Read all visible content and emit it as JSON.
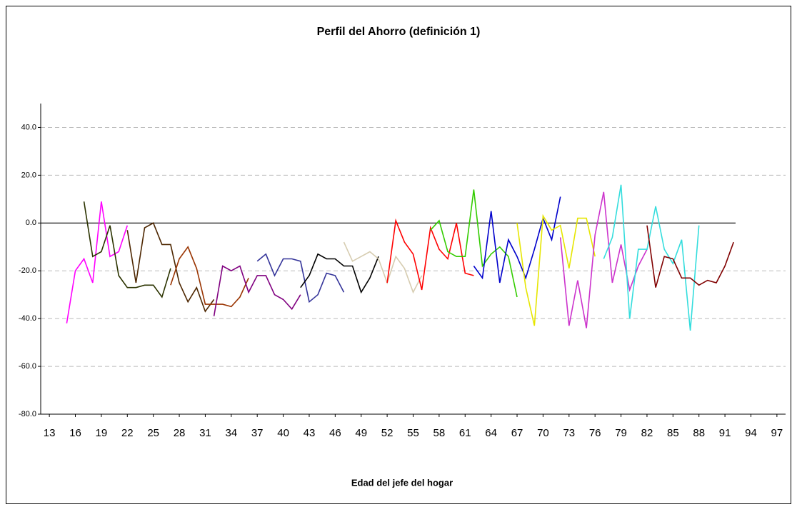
{
  "chart_data": {
    "type": "line",
    "title": "Perfil del Ahorro (definición 1)",
    "x_label": "Edad del jefe del hogar",
    "xlim": [
      12,
      98
    ],
    "xticks": [
      13,
      16,
      19,
      22,
      25,
      28,
      31,
      34,
      37,
      40,
      43,
      46,
      49,
      52,
      55,
      58,
      61,
      64,
      67,
      70,
      73,
      76,
      79,
      82,
      85,
      88,
      91,
      94,
      97
    ],
    "ylim": [
      -80,
      50
    ],
    "yticks": [
      {
        "value": -80,
        "label": "-80.0"
      },
      {
        "value": -60,
        "label": "-60.0"
      },
      {
        "value": -40,
        "label": "-40.0"
      },
      {
        "value": -20,
        "label": "-20.0"
      },
      {
        "value": 0,
        "label": "0.0"
      },
      {
        "value": 20,
        "label": "20.0"
      },
      {
        "value": 40,
        "label": "40.0"
      }
    ],
    "grid": true,
    "series": [
      {
        "color": "#ff00ff",
        "x": [
          15,
          16,
          17,
          18,
          19,
          20,
          21,
          22
        ],
        "values": [
          -42,
          -20,
          -15,
          -25,
          9,
          -14,
          -12,
          -1
        ]
      },
      {
        "color": "#2b3300",
        "x": [
          17,
          18,
          19,
          20,
          21,
          22,
          23,
          24,
          25,
          26,
          27
        ],
        "values": [
          9,
          -14,
          -12,
          -1,
          -22,
          -27,
          -27,
          -26,
          -26,
          -31,
          -19
        ]
      },
      {
        "color": "#4d2600",
        "x": [
          22,
          23,
          24,
          25,
          26,
          27,
          28,
          29,
          30,
          31,
          32
        ],
        "values": [
          -3,
          -25,
          -2,
          0,
          -9,
          -9,
          -25,
          -33,
          -27,
          -37,
          -32
        ]
      },
      {
        "color": "#993300",
        "x": [
          27,
          28,
          29,
          30,
          31,
          32,
          33,
          34,
          35,
          36
        ],
        "values": [
          -26,
          -15,
          -10,
          -19,
          -34,
          -34,
          -34,
          -35,
          -31,
          -23
        ]
      },
      {
        "color": "#800080",
        "x": [
          32,
          33,
          34,
          35,
          36,
          37,
          38,
          39,
          40,
          41,
          42
        ],
        "values": [
          -39,
          -18,
          -20,
          -18,
          -29,
          -22,
          -22,
          -30,
          -32,
          -36,
          -30
        ]
      },
      {
        "color": "#333399",
        "x": [
          37,
          38,
          39,
          40,
          41,
          42,
          43,
          44,
          45,
          46,
          47
        ],
        "values": [
          -16,
          -13,
          -22,
          -15,
          -15,
          -16,
          -33,
          -30,
          -21,
          -22,
          -29
        ]
      },
      {
        "color": "#000000",
        "x": [
          42,
          43,
          44,
          45,
          46,
          47,
          48,
          49,
          50,
          51
        ],
        "values": [
          -27,
          -22,
          -13,
          -15,
          -15,
          -18,
          -18,
          -29,
          -23,
          -14
        ]
      },
      {
        "color": "#d6ccb0",
        "x": [
          47,
          48,
          49,
          50,
          51,
          52,
          53,
          54,
          55,
          56
        ],
        "values": [
          -8,
          -16,
          -14,
          -12,
          -15,
          -25,
          -14,
          -19,
          -29,
          -22
        ]
      },
      {
        "color": "#ff0000",
        "x": [
          52,
          53,
          54,
          55,
          56,
          57,
          58,
          59,
          60,
          61,
          62
        ],
        "values": [
          -25,
          1,
          -8,
          -13,
          -28,
          -2,
          -11,
          -15,
          0,
          -21,
          -22
        ]
      },
      {
        "color": "#33cc00",
        "x": [
          57,
          58,
          59,
          60,
          61,
          62,
          63,
          64,
          65,
          66,
          67
        ],
        "values": [
          -3,
          1,
          -12,
          -14,
          -14,
          14,
          -18,
          -13,
          -10,
          -14,
          -31
        ]
      },
      {
        "color": "#0000cc",
        "x": [
          62,
          63,
          64,
          65,
          66,
          67,
          68,
          69,
          70,
          71,
          72
        ],
        "values": [
          -18,
          -23,
          5,
          -25,
          -7,
          -14,
          -23,
          -11,
          2,
          -7,
          11
        ]
      },
      {
        "color": "#e6e600",
        "x": [
          67,
          68,
          69,
          70,
          71,
          72,
          73,
          74,
          75,
          76
        ],
        "values": [
          0,
          -27,
          -43,
          3,
          -3,
          -1,
          -19,
          2,
          2,
          -14
        ]
      },
      {
        "color": "#cc33cc",
        "x": [
          72,
          73,
          74,
          75,
          76,
          77,
          78,
          79,
          80,
          81,
          82
        ],
        "values": [
          -6,
          -43,
          -24,
          -44,
          -5,
          13,
          -25,
          -9,
          -28,
          -18,
          -11
        ]
      },
      {
        "color": "#33dddd",
        "x": [
          77,
          78,
          79,
          80,
          81,
          82,
          83,
          84,
          85,
          86,
          87,
          88
        ],
        "values": [
          -15,
          -6,
          16,
          -40,
          -11,
          -11,
          7,
          -11,
          -17,
          -7,
          -45,
          -1
        ]
      },
      {
        "color": "#800000",
        "x": [
          82,
          83,
          84,
          85,
          86,
          87,
          88,
          89,
          90,
          91,
          92
        ],
        "values": [
          -1,
          -27,
          -14,
          -15,
          -23,
          -23,
          -26,
          -24,
          -25,
          -18,
          -8
        ]
      }
    ]
  }
}
